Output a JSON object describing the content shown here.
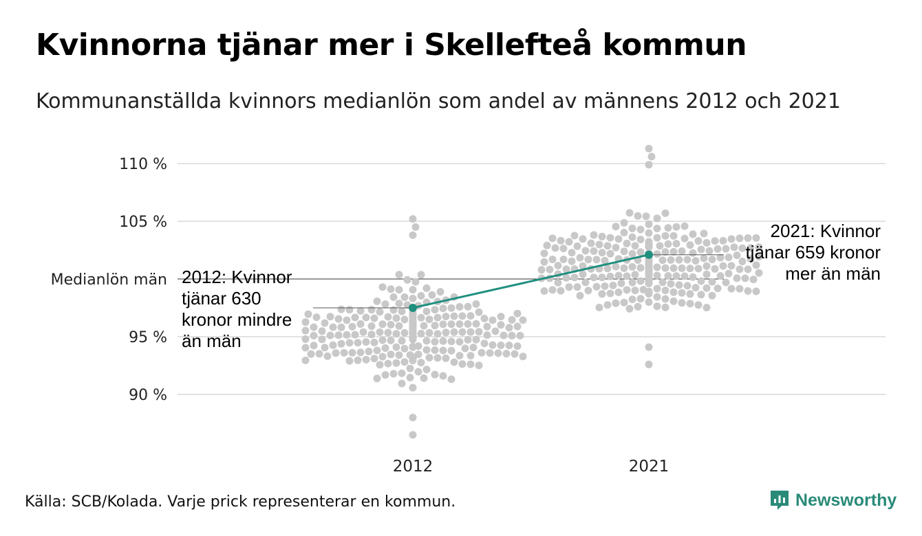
{
  "title": "Kvinnorna tjänar mer i Skellefteå kommun",
  "subtitle": "Kommunanställda kvinnors medianlön som andel av männens 2012 och 2021",
  "source": "Källa: SCB/Kolada. Varje prick representerar en kommun.",
  "brand": {
    "name": "Newsworthy",
    "icon": "newsworthy-logo-icon",
    "color": "#2a8a78"
  },
  "chart_data": {
    "type": "scatter",
    "variant": "beeswarm",
    "categories": [
      "2012",
      "2021"
    ],
    "ylim": [
      86,
      111
    ],
    "yticks": [
      90,
      95,
      105,
      110
    ],
    "ytick_labels": [
      "90 %",
      "95 %",
      "105 %",
      "110 %"
    ],
    "reference_line": {
      "value": 100,
      "label": "Medianlön män"
    },
    "grid": true,
    "dot_color": "#c8c8c8",
    "highlight_color": "#1f8f7f",
    "series": [
      {
        "name": "Skellefteå",
        "x": [
          "2012",
          "2021"
        ],
        "values": [
          97.5,
          102.1
        ]
      }
    ],
    "annotations": [
      {
        "x": "2012",
        "value": 97.5,
        "lines": [
          "2012: Kvinnor",
          "tjänar 630",
          "kronor mindre",
          "än män"
        ]
      },
      {
        "x": "2021",
        "value": 102.1,
        "lines": [
          "2021: Kvinnor",
          "tjänar 659 kronor",
          "mer än män"
        ]
      }
    ],
    "distribution": {
      "2012": {
        "center": 95.3,
        "min": 86.5,
        "max": 105.2,
        "count": 290
      },
      "2021": {
        "center": 101.0,
        "min": 92.6,
        "max": 111.3,
        "count": 290
      }
    }
  }
}
